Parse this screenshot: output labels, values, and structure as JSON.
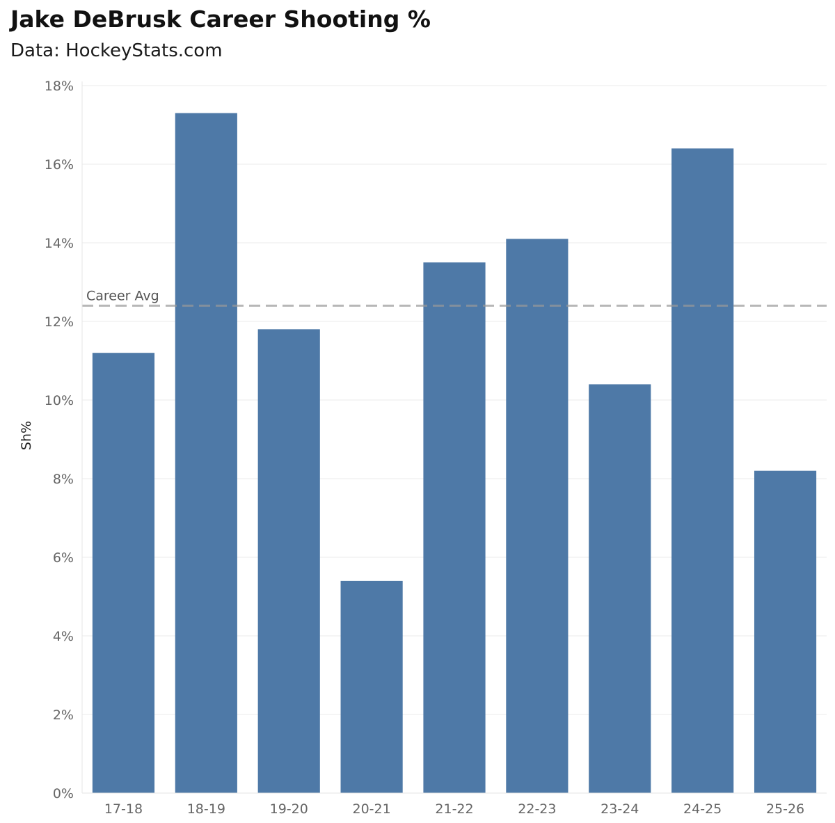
{
  "title": "Jake DeBrusk Career Shooting %",
  "subtitle": "Data: HockeyStats.com",
  "chart_data": {
    "type": "bar",
    "title": "Jake DeBrusk Career Shooting %",
    "subtitle": "Data: HockeyStats.com",
    "xlabel": "",
    "ylabel": "Sh%",
    "categories": [
      "17-18",
      "18-19",
      "19-20",
      "20-21",
      "21-22",
      "22-23",
      "23-24",
      "24-25",
      "25-26"
    ],
    "values": [
      11.2,
      17.3,
      11.8,
      5.4,
      13.5,
      14.1,
      10.4,
      16.4,
      8.2
    ],
    "ylim": [
      0,
      18
    ],
    "yticks": [
      0,
      2,
      4,
      6,
      8,
      10,
      12,
      14,
      16,
      18
    ],
    "ytick_labels": [
      "0%",
      "2%",
      "4%",
      "6%",
      "8%",
      "10%",
      "12%",
      "14%",
      "16%",
      "18%"
    ],
    "grid": true,
    "bar_color": "#4e79a7",
    "reference_line": {
      "label": "Career Avg",
      "value": 12.4,
      "style": "dashed",
      "color": "#999999"
    }
  }
}
